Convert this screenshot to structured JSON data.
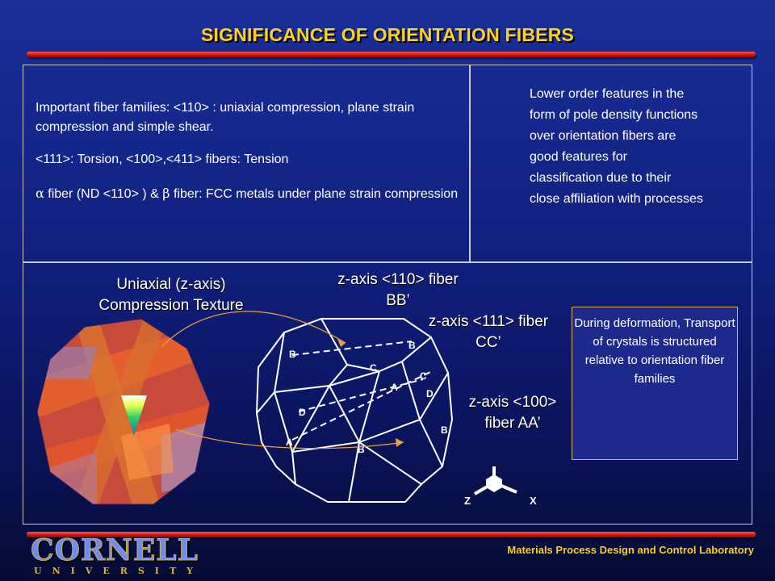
{
  "title": "SIGNIFICANCE OF ORIENTATION FIBERS",
  "left_text": {
    "p1": "Important fiber families: <110> : uniaxial compression, plane strain compression and simple shear.",
    "p2": "<111>: Torsion, <100>,<411>  fibers: Tension",
    "p3_alpha": "α",
    "p3_a": " fiber (ND <110> ) & ",
    "p3_beta": "β",
    "p3_b": " fiber: FCC metals under plane strain compression"
  },
  "right_text": "Lower order features in the form of pole density functions over orientation fibers are good features for classification due to their close affiliation with processes",
  "labels": {
    "uniaxial_line1": "Uniaxial (z-axis)",
    "uniaxial_line2": "Compression Texture",
    "fiber110_line1": "z-axis <110> fiber",
    "fiber110_line2": "BB’",
    "fiber111_line1": "z-axis <111> fiber",
    "fiber111_line2": "CC’",
    "fiber100_line1": "z-axis <100>",
    "fiber100_line2": "fiber AA’"
  },
  "diagram_letters": {
    "B": "B",
    "C": "C",
    "A": "A",
    "D": "D"
  },
  "axes": {
    "z": "Z",
    "x": "X"
  },
  "during_text": "During deformation, Transport of crystals is structured relative to orientation fiber families",
  "footer": "Materials Process Design and Control Laboratory",
  "logo": {
    "name": "CORNELL",
    "sub": "UNIVERSITY"
  },
  "colors": {
    "title": "#ffd21a",
    "bar": "#d2150d",
    "background": "#0f1f7d"
  }
}
